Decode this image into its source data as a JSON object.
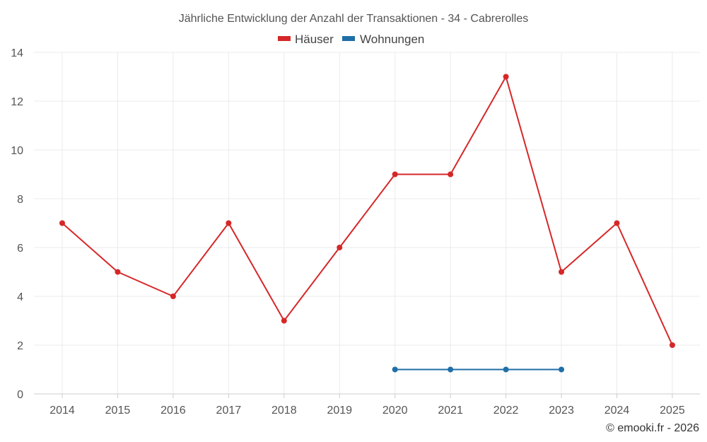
{
  "chart_data": {
    "type": "line",
    "title": "Jährliche Entwicklung der Anzahl der Transaktionen - 34 - Cabrerolles",
    "categories": [
      "2014",
      "2015",
      "2016",
      "2017",
      "2018",
      "2019",
      "2020",
      "2021",
      "2022",
      "2023",
      "2024",
      "2025"
    ],
    "series": [
      {
        "name": "Häuser",
        "color": "#d62728",
        "values": [
          7,
          5,
          4,
          7,
          3,
          6,
          9,
          9,
          13,
          5,
          7,
          2
        ]
      },
      {
        "name": "Wohnungen",
        "color": "#1f6fa8",
        "values": [
          null,
          null,
          null,
          null,
          null,
          null,
          1,
          1,
          1,
          1,
          null,
          null
        ]
      }
    ],
    "ylim": [
      0,
      14
    ],
    "yticks": [
      0,
      2,
      4,
      6,
      8,
      10,
      12,
      14
    ],
    "grid": true,
    "legend_position": "top-center"
  },
  "credit": "© emooki.fr - 2026"
}
